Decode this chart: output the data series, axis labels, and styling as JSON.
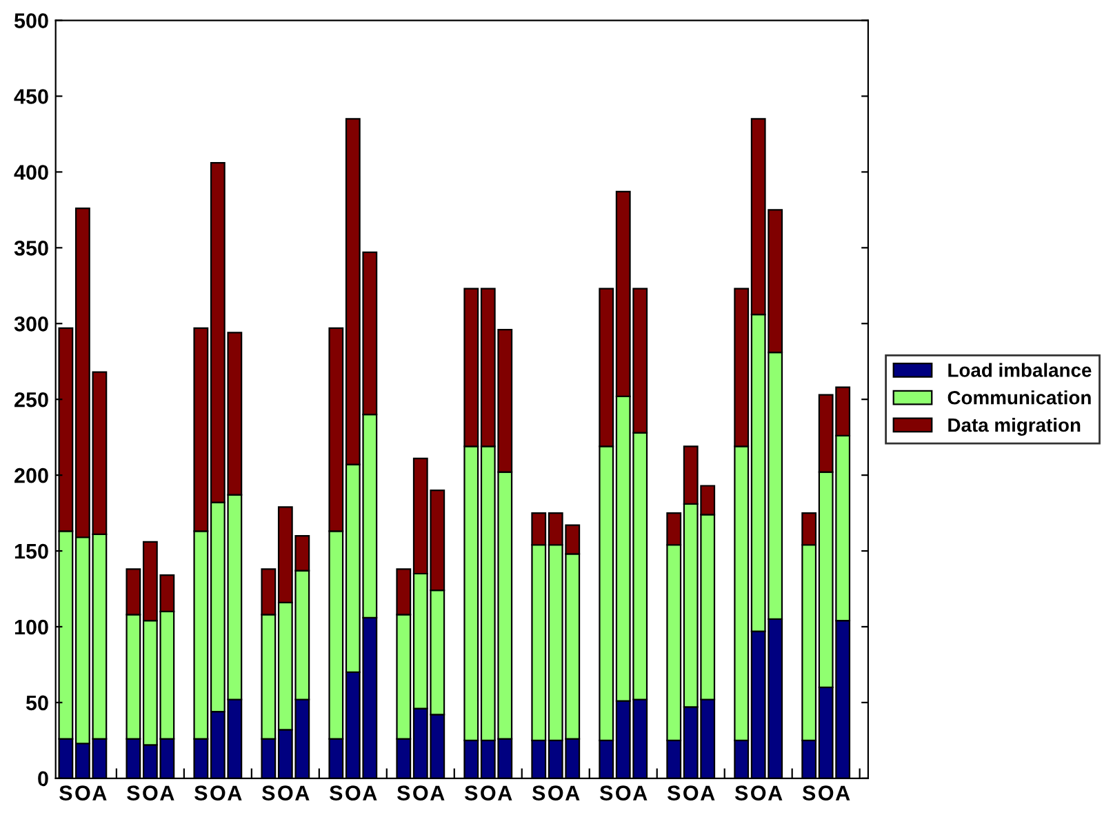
{
  "chart_data": {
    "type": "bar",
    "stacked": true,
    "categories": [
      "S",
      "O",
      "A",
      null,
      "S",
      "O",
      "A",
      null,
      "S",
      "O",
      "A",
      null,
      "S",
      "O",
      "A",
      null,
      "S",
      "O",
      "A",
      null,
      "S",
      "O",
      "A",
      null,
      "S",
      "O",
      "A",
      null,
      "S",
      "O",
      "A",
      null,
      "S",
      "O",
      "A",
      null,
      "S",
      "O",
      "A",
      null,
      "S",
      "O",
      "A",
      null,
      "S",
      "O",
      "A",
      null
    ],
    "series": [
      {
        "name": "Load imbalance",
        "color": "#000080",
        "values": [
          26,
          23,
          26,
          null,
          26,
          22,
          26,
          null,
          26,
          44,
          52,
          null,
          26,
          32,
          52,
          null,
          26,
          70,
          106,
          null,
          26,
          46,
          42,
          null,
          25,
          25,
          26,
          null,
          25,
          25,
          26,
          null,
          25,
          51,
          52,
          null,
          25,
          47,
          52,
          null,
          25,
          97,
          105,
          null,
          25,
          60,
          104,
          null
        ]
      },
      {
        "name": "Communication",
        "color": "#90ff70",
        "values": [
          137,
          136,
          135,
          null,
          82,
          82,
          84,
          null,
          137,
          138,
          135,
          null,
          82,
          84,
          85,
          null,
          137,
          137,
          134,
          null,
          82,
          89,
          82,
          null,
          194,
          194,
          176,
          null,
          129,
          129,
          122,
          null,
          194,
          201,
          176,
          null,
          129,
          134,
          122,
          null,
          194,
          209,
          176,
          null,
          129,
          142,
          122,
          null
        ]
      },
      {
        "name": "Data migration",
        "color": "#800000",
        "values": [
          134,
          217,
          107,
          null,
          30,
          52,
          24,
          null,
          134,
          224,
          107,
          null,
          30,
          63,
          23,
          null,
          134,
          228,
          107,
          null,
          30,
          76,
          66,
          null,
          104,
          104,
          94,
          null,
          21,
          21,
          19,
          null,
          104,
          135,
          95,
          null,
          21,
          38,
          19,
          null,
          104,
          129,
          94,
          null,
          21,
          51,
          32,
          null
        ]
      }
    ],
    "ylim": [
      0,
      500
    ],
    "yticks": [
      0,
      50,
      100,
      150,
      200,
      250,
      300,
      350,
      400,
      450,
      500
    ],
    "grid": false,
    "legend": "right"
  }
}
